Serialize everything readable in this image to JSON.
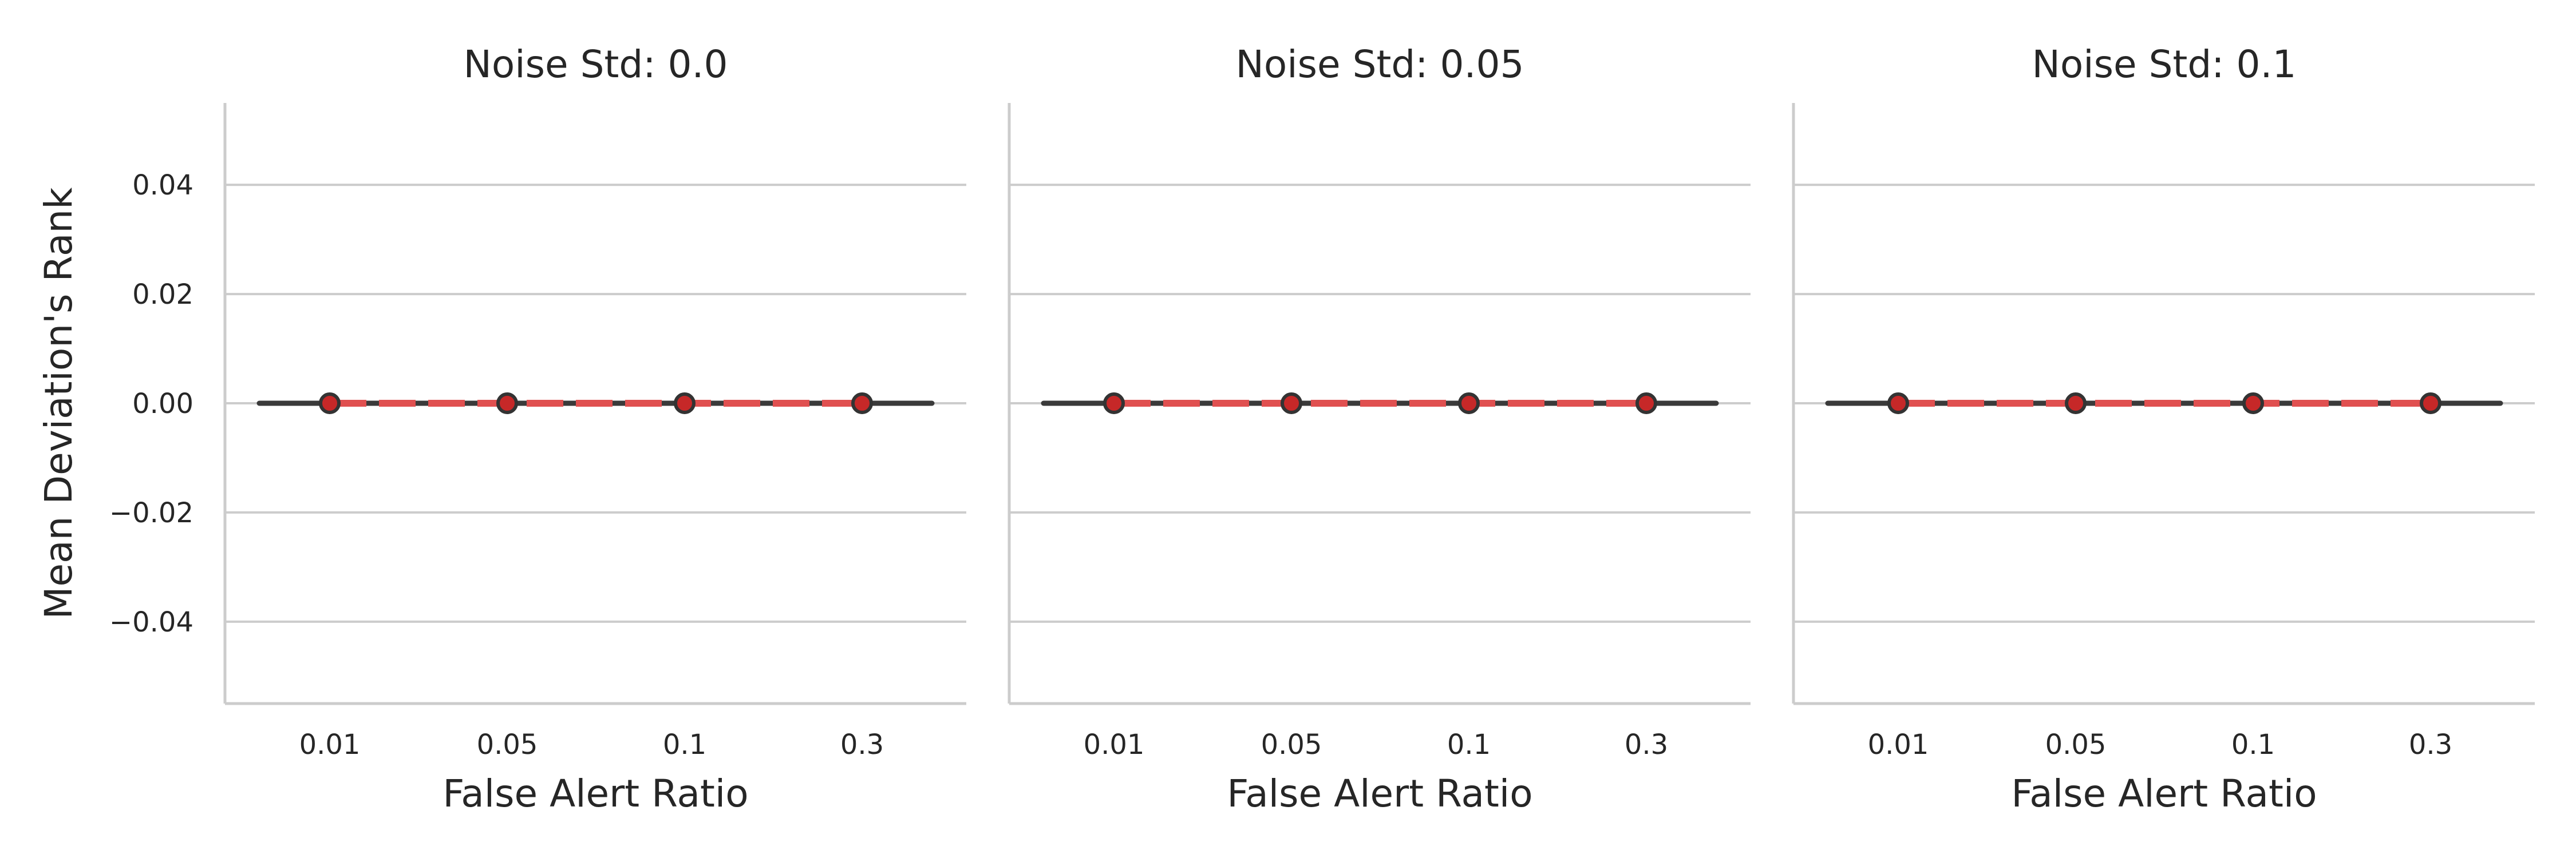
{
  "chart_data": {
    "type": "line",
    "ylabel": "Mean Deviation's Rank",
    "xlabel": "False Alert Ratio",
    "categories": [
      "0.01",
      "0.05",
      "0.1",
      "0.3"
    ],
    "ylim": [
      -0.055,
      0.055
    ],
    "yticks": [
      0.04,
      0.02,
      0.0,
      -0.02,
      -0.04
    ],
    "ytick_labels": [
      "0.04",
      "0.02",
      "0.00",
      "−0.02",
      "−0.04"
    ],
    "grid": "horizontal",
    "colors": {
      "points": "#c62828",
      "mean_line": "#e05050",
      "series_line": "#3a3a3a",
      "grid": "#cccccc"
    },
    "panels": [
      {
        "title": "Noise Std: 0.0",
        "values": [
          0.0,
          0.0,
          0.0,
          0.0
        ],
        "mean": 0.0
      },
      {
        "title": "Noise Std: 0.05",
        "values": [
          0.0,
          0.0,
          0.0,
          0.0
        ],
        "mean": 0.0
      },
      {
        "title": "Noise Std: 0.1",
        "values": [
          0.0,
          0.0,
          0.0,
          0.0
        ],
        "mean": 0.0
      }
    ]
  }
}
